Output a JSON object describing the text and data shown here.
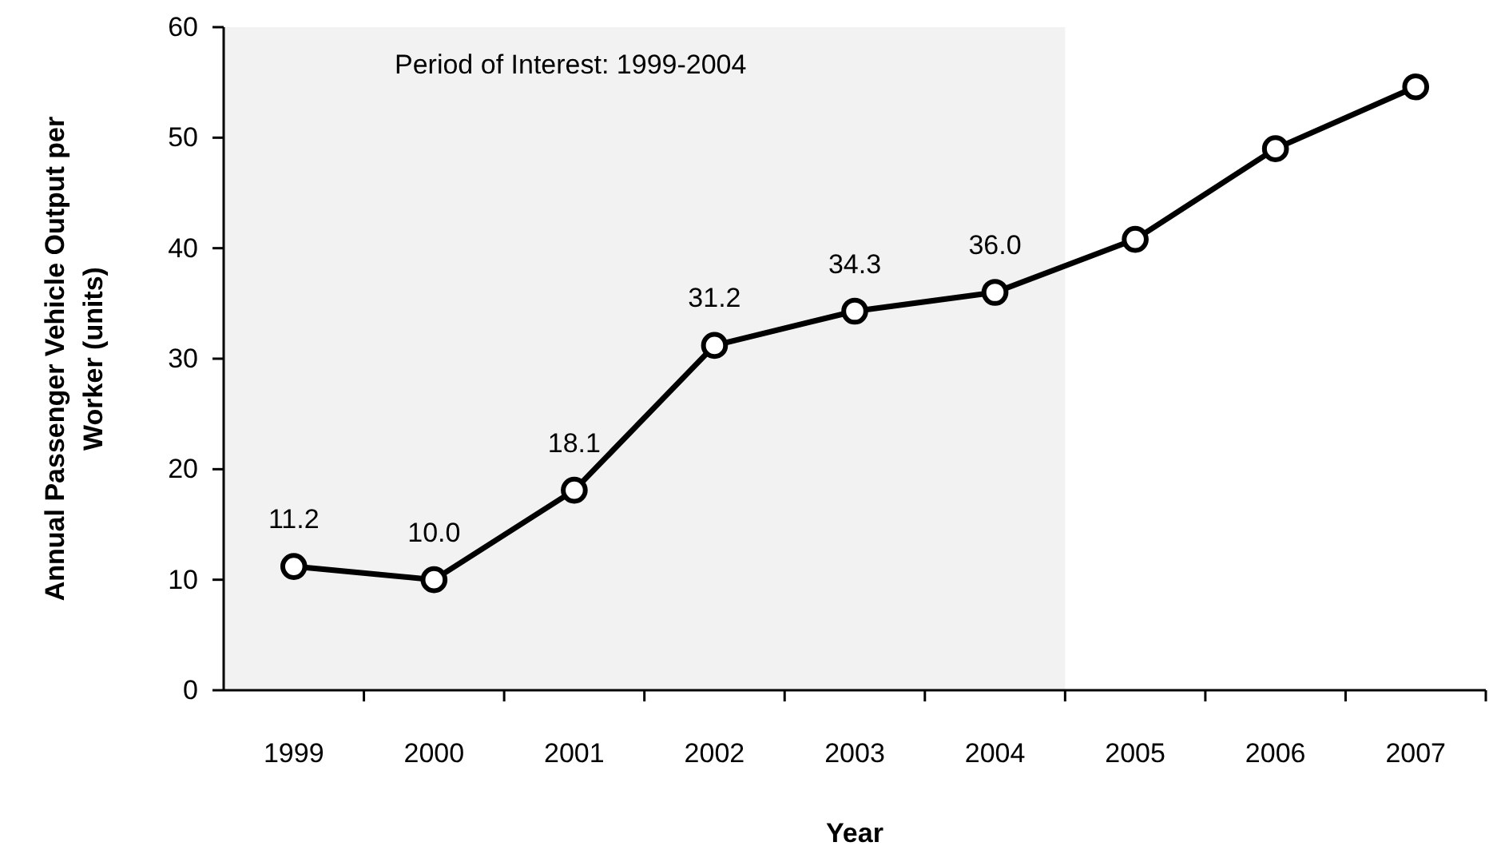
{
  "chart_data": {
    "type": "line",
    "xlabel": "Year",
    "ylabel": "Annual Passenger Vehicle Output per Worker (units)",
    "categories": [
      "1999",
      "2000",
      "2001",
      "2002",
      "2003",
      "2004",
      "2005",
      "2006",
      "2007"
    ],
    "series": [
      {
        "color": "#000000",
        "values": [
          11.2,
          10.0,
          18.1,
          31.2,
          34.3,
          36.0,
          40.8,
          49.0,
          54.6
        ],
        "value_labels": [
          "11.2",
          "10.0",
          "18.1",
          "31.2",
          "34.3",
          "36.0",
          null,
          null,
          null
        ]
      }
    ],
    "ylim": [
      0,
      60
    ],
    "yticks": [
      0,
      10,
      20,
      30,
      40,
      50,
      60
    ],
    "grid": false,
    "marker": "circle",
    "line_style": "solid",
    "bands": [
      {
        "axis": "x",
        "from": "1999",
        "to": "2004",
        "label": "Period of Interest: 1999-2004",
        "color": "#f2f2f2"
      }
    ]
  }
}
